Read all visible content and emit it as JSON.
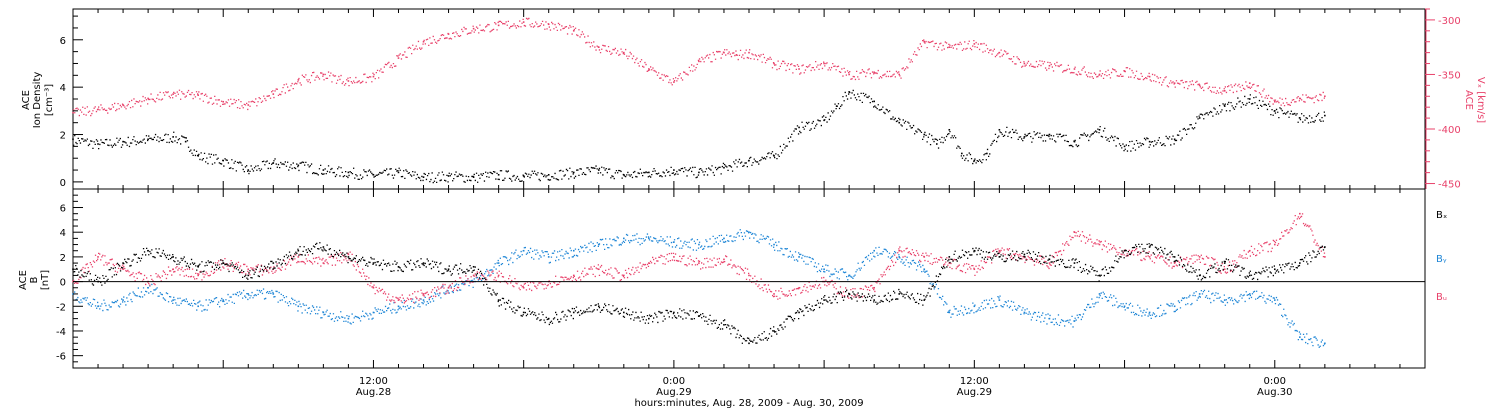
{
  "figure": {
    "x_axis": {
      "title": "hours:minutes, Aug. 28, 2009 - Aug. 30, 2009",
      "range_hours": [
        0,
        54
      ],
      "major_ticks": [
        {
          "hour": 12,
          "time": "12:00",
          "date": "Aug.28"
        },
        {
          "hour": 24,
          "time": "0:00",
          "date": "Aug.29"
        },
        {
          "hour": 36,
          "time": "12:00",
          "date": "Aug.29"
        },
        {
          "hour": 48,
          "time": "0:00",
          "date": "Aug.30"
        }
      ]
    },
    "colors": {
      "black": "#000000",
      "red": "#e8416a",
      "blue": "#1f86d6"
    }
  },
  "chart_data": [
    {
      "type": "scatter",
      "panel": "top",
      "ylabel_left": [
        "ACE",
        "Ion Density",
        "[cm⁻³]"
      ],
      "ylim_left": [
        -0.3,
        7.3
      ],
      "yticks_left": [
        0,
        2,
        4,
        6
      ],
      "ylabel_right": [
        "ACE",
        "Vₓ [km/s]"
      ],
      "ylim_right": [
        -455,
        -290
      ],
      "yticks_right": [
        -300,
        -350,
        -400,
        -450
      ],
      "series": [
        {
          "axis": "left",
          "color": "#000000",
          "x": [
            0,
            1,
            2,
            3,
            4,
            4.5,
            5,
            6,
            7,
            8,
            9,
            10,
            11,
            12,
            13,
            14,
            15,
            16,
            17,
            18,
            19,
            20,
            21,
            22,
            23,
            24,
            25,
            26,
            27,
            28,
            29,
            30,
            30.5,
            31,
            32,
            33,
            34,
            34.5,
            35,
            35.5,
            36,
            36.5,
            37,
            38,
            39,
            40,
            41,
            42,
            43,
            44,
            45,
            46,
            47,
            48,
            49,
            50
          ],
          "y": [
            1.8,
            1.6,
            1.7,
            1.8,
            1.9,
            1.7,
            1.1,
            0.9,
            0.5,
            0.8,
            0.7,
            0.5,
            0.4,
            0.3,
            0.4,
            0.2,
            0.25,
            0.2,
            0.3,
            0.25,
            0.3,
            0.4,
            0.5,
            0.3,
            0.4,
            0.5,
            0.4,
            0.6,
            0.9,
            1.1,
            2.3,
            2.6,
            3.2,
            3.8,
            3.4,
            2.5,
            2.0,
            1.6,
            2.2,
            1.2,
            0.9,
            1.2,
            2.2,
            1.9,
            2.0,
            1.7,
            2.2,
            1.5,
            1.7,
            1.8,
            2.7,
            3.2,
            3.5,
            3.0,
            2.7,
            2.8
          ]
        },
        {
          "axis": "right",
          "color": "#e8416a",
          "x": [
            0,
            1,
            2,
            3,
            4,
            5,
            6,
            7,
            8,
            9,
            10,
            11,
            12,
            13,
            14,
            15,
            16,
            17,
            18,
            19,
            20,
            21,
            22,
            23,
            24,
            25,
            26,
            26.5,
            27,
            28,
            29,
            30,
            31,
            32,
            33,
            34,
            35,
            36,
            37,
            38,
            39,
            40,
            41,
            42,
            43,
            44,
            45,
            46,
            47,
            48,
            49,
            50
          ],
          "y": [
            -385,
            -382,
            -378,
            -372,
            -368,
            -369,
            -375,
            -378,
            -368,
            -355,
            -350,
            -356,
            -352,
            -335,
            -320,
            -313,
            -308,
            -305,
            -302,
            -304,
            -310,
            -325,
            -330,
            -345,
            -357,
            -338,
            -330,
            -332,
            -330,
            -340,
            -345,
            -340,
            -350,
            -348,
            -350,
            -320,
            -325,
            -322,
            -330,
            -340,
            -342,
            -345,
            -350,
            -347,
            -352,
            -358,
            -360,
            -365,
            -358,
            -375,
            -372,
            -370
          ]
        }
      ]
    },
    {
      "type": "scatter",
      "panel": "bottom",
      "ylabel_left": [
        "ACE",
        "B",
        "[nT]"
      ],
      "ylim_left": [
        -7,
        7.5
      ],
      "yticks_left": [
        6,
        4,
        2,
        0,
        -2,
        -4,
        -6
      ],
      "zero_line": true,
      "series": [
        {
          "name": "Bx",
          "legend_label": "Bₓ",
          "color": "#000000",
          "x": [
            0,
            1,
            2,
            3,
            4,
            5,
            6,
            7,
            8,
            9,
            10,
            11,
            12,
            13,
            14,
            15,
            16,
            17,
            18,
            19,
            20,
            21,
            22,
            23,
            24,
            25,
            26,
            27,
            28,
            29,
            30,
            31,
            32,
            33,
            34,
            35,
            36,
            37,
            38,
            39,
            40,
            41,
            42,
            43,
            44,
            45,
            46,
            47,
            48,
            49,
            50
          ],
          "y": [
            1,
            0,
            1.5,
            2.5,
            2.0,
            1.2,
            1.5,
            0.5,
            1.5,
            2.5,
            2.8,
            2.0,
            1.5,
            1.2,
            1.5,
            1.0,
            1.2,
            -1.5,
            -2.5,
            -3.0,
            -2.5,
            -2.0,
            -2.5,
            -3.0,
            -2.5,
            -2.8,
            -3.5,
            -5.0,
            -4.0,
            -2.5,
            -1.5,
            -1.0,
            -1.5,
            -1.0,
            -1.5,
            2.0,
            2.5,
            2.0,
            2.2,
            1.8,
            1.5,
            0.5,
            2.5,
            2.8,
            2.0,
            0.5,
            1.5,
            0.5,
            1.0,
            1.5,
            2.8
          ]
        },
        {
          "name": "By",
          "legend_label": "Bᵧ",
          "color": "#1f86d6",
          "x": [
            0,
            1,
            2,
            3,
            4,
            5,
            6,
            7,
            8,
            9,
            10,
            11,
            12,
            13,
            14,
            15,
            16,
            17,
            18,
            19,
            20,
            21,
            22,
            23,
            24,
            25,
            26,
            27,
            28,
            29,
            30,
            31,
            32,
            33,
            34,
            35,
            36,
            37,
            38,
            39,
            40,
            41,
            42,
            43,
            44,
            45,
            46,
            47,
            48,
            49,
            50
          ],
          "y": [
            -1,
            -2,
            -1.5,
            -0.5,
            -1.5,
            -2.0,
            -1.5,
            -1.0,
            -1.0,
            -2.0,
            -2.5,
            -3.0,
            -2.5,
            -2.0,
            -1.5,
            -0.5,
            0,
            1.5,
            2.5,
            2.0,
            2.5,
            3.0,
            3.5,
            3.5,
            3.2,
            3.0,
            3.5,
            4.0,
            3.0,
            2.0,
            1.0,
            0.5,
            2.5,
            2.0,
            1.0,
            -2.5,
            -2.0,
            -1.5,
            -2.5,
            -3.0,
            -3.2,
            -1.0,
            -2.0,
            -2.5,
            -2.0,
            -1.0,
            -1.5,
            -1.0,
            -1.5,
            -4.5,
            -5.0
          ]
        },
        {
          "name": "Bz",
          "legend_label": "Bᵤ",
          "color": "#e8416a",
          "x": [
            0,
            1,
            2,
            3,
            4,
            5,
            6,
            7,
            8,
            9,
            10,
            11,
            12,
            13,
            14,
            15,
            16,
            17,
            18,
            19,
            20,
            21,
            22,
            23,
            24,
            25,
            26,
            27,
            28,
            29,
            30,
            31,
            32,
            33,
            34,
            35,
            36,
            37,
            38,
            39,
            40,
            41,
            42,
            43,
            44,
            45,
            46,
            47,
            48,
            49,
            50
          ],
          "y": [
            0,
            2,
            1,
            0,
            1,
            0.5,
            1.5,
            1.0,
            1.0,
            2.0,
            1.5,
            2.2,
            -0.5,
            -1.5,
            -1.0,
            -0.5,
            0.5,
            0.5,
            -0.5,
            0,
            0.5,
            1.0,
            0.5,
            1.5,
            2.0,
            1.5,
            1.8,
            0.5,
            -1.0,
            -0.5,
            0.0,
            -1.0,
            -0.5,
            2.5,
            2.0,
            1.5,
            1.0,
            2.5,
            2.0,
            1.5,
            4.0,
            3.0,
            2.5,
            2.0,
            1.5,
            2.0,
            1.0,
            2.5,
            3.0,
            5.5,
            2.0
          ]
        }
      ]
    }
  ]
}
